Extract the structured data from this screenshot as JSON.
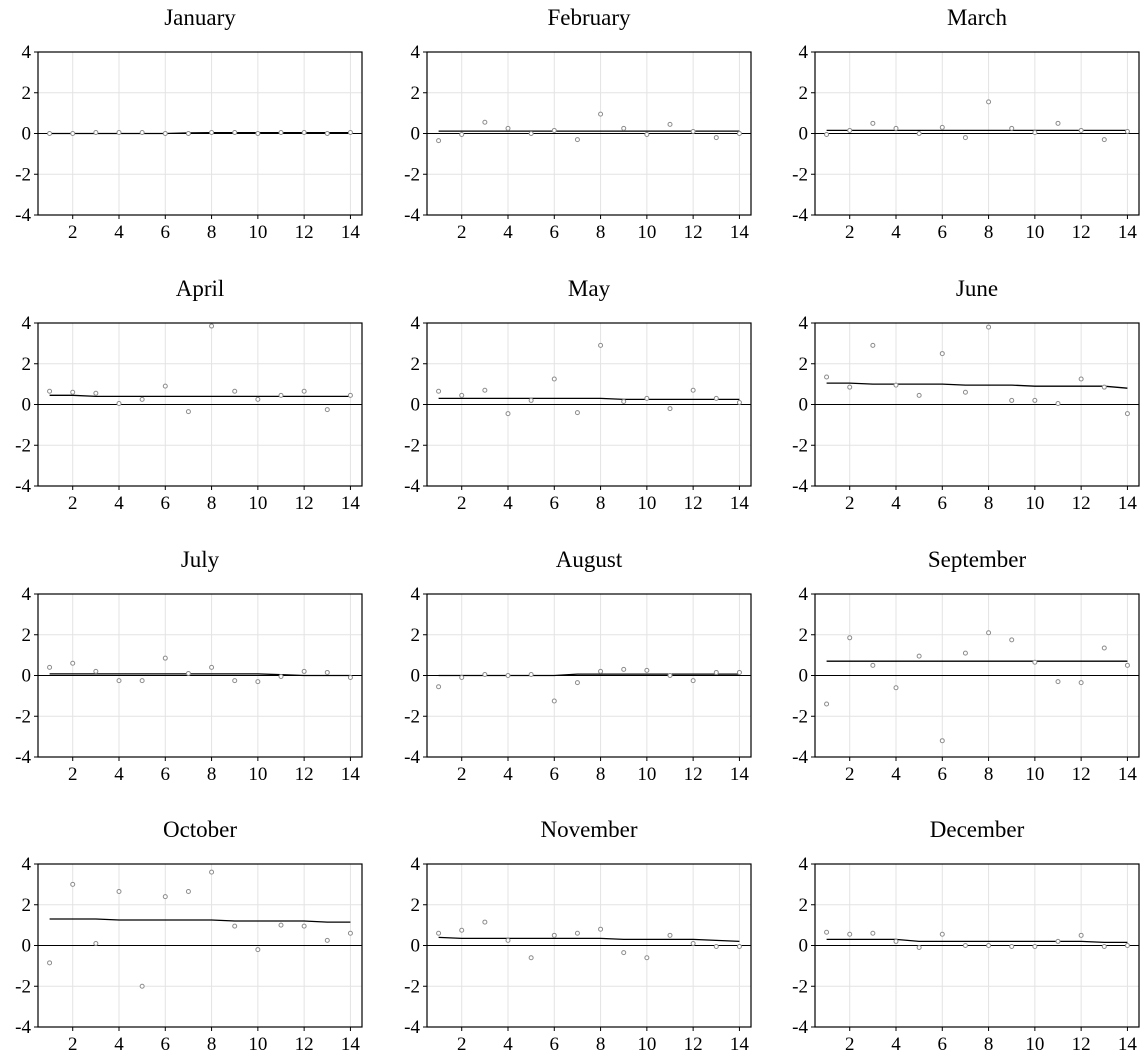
{
  "chart_data": [
    {
      "type": "scatter",
      "title": "January",
      "xlim": [
        0.5,
        14.5
      ],
      "ylim": [
        -4,
        4
      ],
      "xticks": [
        2,
        4,
        6,
        8,
        10,
        12,
        14
      ],
      "yticks": [
        -4,
        -2,
        0,
        2,
        4
      ],
      "x": [
        1,
        2,
        3,
        4,
        5,
        6,
        7,
        8,
        9,
        10,
        11,
        12,
        13,
        14
      ],
      "points": [
        0.0,
        0.0,
        0.05,
        0.05,
        0.05,
        0.0,
        0.0,
        0.05,
        0.05,
        0.0,
        0.05,
        0.05,
        0.0,
        0.05
      ],
      "fit": [
        0.0,
        0.0,
        0.0,
        0.0,
        0.0,
        0.0,
        0.03,
        0.04,
        0.04,
        0.04,
        0.04,
        0.04,
        0.04,
        0.04
      ]
    },
    {
      "type": "scatter",
      "title": "February",
      "xlim": [
        0.5,
        14.5
      ],
      "ylim": [
        -4,
        4
      ],
      "xticks": [
        2,
        4,
        6,
        8,
        10,
        12,
        14
      ],
      "yticks": [
        -4,
        -2,
        0,
        2,
        4
      ],
      "x": [
        1,
        2,
        3,
        4,
        5,
        6,
        7,
        8,
        9,
        10,
        11,
        12,
        13,
        14
      ],
      "points": [
        -0.35,
        -0.05,
        0.55,
        0.25,
        0.0,
        0.15,
        -0.3,
        0.95,
        0.25,
        -0.05,
        0.45,
        0.1,
        -0.2,
        0.0
      ],
      "fit": [
        0.12,
        0.12,
        0.12,
        0.12,
        0.12,
        0.12,
        0.12,
        0.12,
        0.12,
        0.12,
        0.12,
        0.12,
        0.12,
        0.12
      ]
    },
    {
      "type": "scatter",
      "title": "March",
      "xlim": [
        0.5,
        14.5
      ],
      "ylim": [
        -4,
        4
      ],
      "xticks": [
        2,
        4,
        6,
        8,
        10,
        12,
        14
      ],
      "yticks": [
        -4,
        -2,
        0,
        2,
        4
      ],
      "x": [
        1,
        2,
        3,
        4,
        5,
        6,
        7,
        8,
        9,
        10,
        11,
        12,
        13,
        14
      ],
      "points": [
        -0.05,
        0.15,
        0.5,
        0.25,
        0.0,
        0.3,
        -0.2,
        1.55,
        0.25,
        0.05,
        0.5,
        0.15,
        -0.3,
        0.1
      ],
      "fit": [
        0.15,
        0.15,
        0.15,
        0.15,
        0.15,
        0.15,
        0.15,
        0.15,
        0.15,
        0.15,
        0.15,
        0.15,
        0.15,
        0.15
      ]
    },
    {
      "type": "scatter",
      "title": "April",
      "xlim": [
        0.5,
        14.5
      ],
      "ylim": [
        -4,
        4
      ],
      "xticks": [
        2,
        4,
        6,
        8,
        10,
        12,
        14
      ],
      "yticks": [
        -4,
        -2,
        0,
        2,
        4
      ],
      "x": [
        1,
        2,
        3,
        4,
        5,
        6,
        7,
        8,
        9,
        10,
        11,
        12,
        13,
        14
      ],
      "points": [
        0.65,
        0.6,
        0.55,
        0.05,
        0.25,
        0.9,
        -0.35,
        3.85,
        0.65,
        0.25,
        0.45,
        0.65,
        -0.25,
        0.45
      ],
      "fit": [
        0.45,
        0.45,
        0.4,
        0.4,
        0.4,
        0.4,
        0.4,
        0.4,
        0.4,
        0.4,
        0.4,
        0.4,
        0.4,
        0.4
      ]
    },
    {
      "type": "scatter",
      "title": "May",
      "xlim": [
        0.5,
        14.5
      ],
      "ylim": [
        -4,
        4
      ],
      "xticks": [
        2,
        4,
        6,
        8,
        10,
        12,
        14
      ],
      "yticks": [
        -4,
        -2,
        0,
        2,
        4
      ],
      "x": [
        1,
        2,
        3,
        4,
        5,
        6,
        7,
        8,
        9,
        10,
        11,
        12,
        13,
        14
      ],
      "points": [
        0.65,
        0.45,
        0.7,
        -0.45,
        0.2,
        1.25,
        -0.4,
        2.9,
        0.15,
        0.3,
        -0.2,
        0.7,
        0.3,
        0.1
      ],
      "fit": [
        0.3,
        0.3,
        0.3,
        0.3,
        0.3,
        0.3,
        0.3,
        0.3,
        0.25,
        0.25,
        0.25,
        0.25,
        0.25,
        0.25
      ]
    },
    {
      "type": "scatter",
      "title": "June",
      "xlim": [
        0.5,
        14.5
      ],
      "ylim": [
        -4,
        4
      ],
      "xticks": [
        2,
        4,
        6,
        8,
        10,
        12,
        14
      ],
      "yticks": [
        -4,
        -2,
        0,
        2,
        4
      ],
      "x": [
        1,
        2,
        3,
        4,
        5,
        6,
        7,
        8,
        9,
        10,
        11,
        12,
        13,
        14
      ],
      "points": [
        1.35,
        0.85,
        2.9,
        0.95,
        0.45,
        2.5,
        0.6,
        3.8,
        0.2,
        0.2,
        0.05,
        1.25,
        0.85,
        -0.45
      ],
      "fit": [
        1.05,
        1.05,
        1.0,
        1.0,
        1.0,
        1.0,
        0.95,
        0.95,
        0.95,
        0.9,
        0.9,
        0.9,
        0.9,
        0.8
      ]
    },
    {
      "type": "scatter",
      "title": "July",
      "xlim": [
        0.5,
        14.5
      ],
      "ylim": [
        -4,
        4
      ],
      "xticks": [
        2,
        4,
        6,
        8,
        10,
        12,
        14
      ],
      "yticks": [
        -4,
        -2,
        0,
        2,
        4
      ],
      "x": [
        1,
        2,
        3,
        4,
        5,
        6,
        7,
        8,
        9,
        10,
        11,
        12,
        13,
        14
      ],
      "points": [
        0.4,
        0.6,
        0.2,
        -0.25,
        -0.25,
        0.85,
        0.1,
        0.4,
        -0.25,
        -0.3,
        -0.05,
        0.2,
        0.15,
        -0.1
      ],
      "fit": [
        0.08,
        0.08,
        0.08,
        0.08,
        0.08,
        0.08,
        0.08,
        0.08,
        0.08,
        0.08,
        0.04,
        0.0,
        0.0,
        0.0
      ]
    },
    {
      "type": "scatter",
      "title": "August",
      "xlim": [
        0.5,
        14.5
      ],
      "ylim": [
        -4,
        4
      ],
      "xticks": [
        2,
        4,
        6,
        8,
        10,
        12,
        14
      ],
      "yticks": [
        -4,
        -2,
        0,
        2,
        4
      ],
      "x": [
        1,
        2,
        3,
        4,
        5,
        6,
        7,
        8,
        9,
        10,
        11,
        12,
        13,
        14
      ],
      "points": [
        -0.55,
        -0.1,
        0.05,
        0.0,
        0.05,
        -1.25,
        -0.35,
        0.2,
        0.3,
        0.25,
        0.0,
        -0.25,
        0.15,
        0.15
      ],
      "fit": [
        0.0,
        0.0,
        0.0,
        0.0,
        0.0,
        0.0,
        0.07,
        0.07,
        0.07,
        0.07,
        0.07,
        0.07,
        0.07,
        0.07
      ]
    },
    {
      "type": "scatter",
      "title": "September",
      "xlim": [
        0.5,
        14.5
      ],
      "ylim": [
        -4,
        4
      ],
      "xticks": [
        2,
        4,
        6,
        8,
        10,
        12,
        14
      ],
      "yticks": [
        -4,
        -2,
        0,
        2,
        4
      ],
      "x": [
        1,
        2,
        3,
        4,
        5,
        6,
        7,
        8,
        9,
        10,
        11,
        12,
        13,
        14
      ],
      "points": [
        -1.4,
        1.85,
        0.5,
        -0.6,
        0.95,
        -3.2,
        1.1,
        2.1,
        1.75,
        0.65,
        -0.3,
        -0.35,
        1.35,
        0.5
      ],
      "fit": [
        0.7,
        0.7,
        0.7,
        0.7,
        0.7,
        0.7,
        0.7,
        0.7,
        0.7,
        0.7,
        0.7,
        0.7,
        0.7,
        0.7
      ]
    },
    {
      "type": "scatter",
      "title": "October",
      "xlim": [
        0.5,
        14.5
      ],
      "ylim": [
        -4,
        4
      ],
      "xticks": [
        2,
        4,
        6,
        8,
        10,
        12,
        14
      ],
      "yticks": [
        -4,
        -2,
        0,
        2,
        4
      ],
      "x": [
        1,
        2,
        3,
        4,
        5,
        6,
        7,
        8,
        9,
        10,
        11,
        12,
        13,
        14
      ],
      "points": [
        -0.85,
        3.0,
        0.1,
        2.65,
        -2.0,
        2.4,
        2.65,
        3.6,
        0.95,
        -0.2,
        1.0,
        0.95,
        0.25,
        0.6
      ],
      "fit": [
        1.3,
        1.3,
        1.3,
        1.25,
        1.25,
        1.25,
        1.25,
        1.25,
        1.2,
        1.2,
        1.2,
        1.2,
        1.15,
        1.15
      ]
    },
    {
      "type": "scatter",
      "title": "November",
      "xlim": [
        0.5,
        14.5
      ],
      "ylim": [
        -4,
        4
      ],
      "xticks": [
        2,
        4,
        6,
        8,
        10,
        12,
        14
      ],
      "yticks": [
        -4,
        -2,
        0,
        2,
        4
      ],
      "x": [
        1,
        2,
        3,
        4,
        5,
        6,
        7,
        8,
        9,
        10,
        11,
        12,
        13,
        14
      ],
      "points": [
        0.6,
        0.75,
        1.15,
        0.25,
        -0.6,
        0.5,
        0.6,
        0.8,
        -0.35,
        -0.6,
        0.5,
        0.1,
        -0.05,
        -0.05
      ],
      "fit": [
        0.4,
        0.35,
        0.35,
        0.35,
        0.35,
        0.35,
        0.35,
        0.35,
        0.3,
        0.3,
        0.3,
        0.3,
        0.25,
        0.2
      ]
    },
    {
      "type": "scatter",
      "title": "December",
      "xlim": [
        0.5,
        14.5
      ],
      "ylim": [
        -4,
        4
      ],
      "xticks": [
        2,
        4,
        6,
        8,
        10,
        12,
        14
      ],
      "yticks": [
        -4,
        -2,
        0,
        2,
        4
      ],
      "x": [
        1,
        2,
        3,
        4,
        5,
        6,
        7,
        8,
        9,
        10,
        11,
        12,
        13,
        14
      ],
      "points": [
        0.65,
        0.55,
        0.6,
        0.2,
        -0.1,
        0.55,
        0.0,
        0.0,
        -0.05,
        -0.05,
        0.2,
        0.5,
        -0.05,
        0.0
      ],
      "fit": [
        0.3,
        0.3,
        0.3,
        0.3,
        0.2,
        0.2,
        0.2,
        0.2,
        0.2,
        0.2,
        0.2,
        0.2,
        0.15,
        0.15
      ]
    }
  ]
}
